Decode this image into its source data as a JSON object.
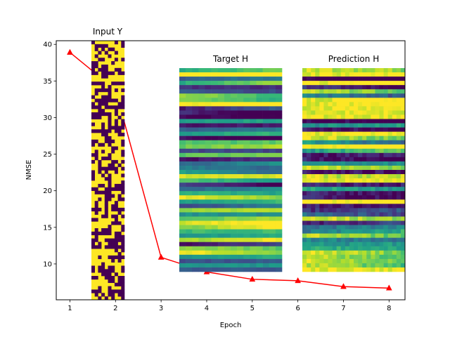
{
  "chart_data": {
    "type": "line",
    "xlabel": "Epoch",
    "ylabel": "NMSE",
    "xlim": [
      0.7,
      8.35
    ],
    "ylim": [
      5.1,
      40.5
    ],
    "x_ticks": [
      1,
      2,
      3,
      4,
      5,
      6,
      7,
      8
    ],
    "y_ticks": [
      10,
      15,
      20,
      25,
      30,
      35,
      40
    ],
    "grid": false,
    "series": [
      {
        "x": [
          1,
          2,
          3,
          4,
          5,
          6,
          7,
          8
        ],
        "values": [
          38.9,
          33.8,
          10.9,
          8.9,
          7.9,
          7.7,
          6.9,
          6.7
        ],
        "color": "#ff0000",
        "marker": "triangle-up"
      }
    ],
    "insets": [
      {
        "title": "Input Y",
        "kind": "binary-heatmap",
        "palette": [
          "#440154",
          "#fde725"
        ]
      },
      {
        "title": "Target H",
        "kind": "heatmap",
        "colormap": "viridis"
      },
      {
        "title": "Prediction H",
        "kind": "heatmap",
        "colormap": "viridis"
      }
    ]
  }
}
